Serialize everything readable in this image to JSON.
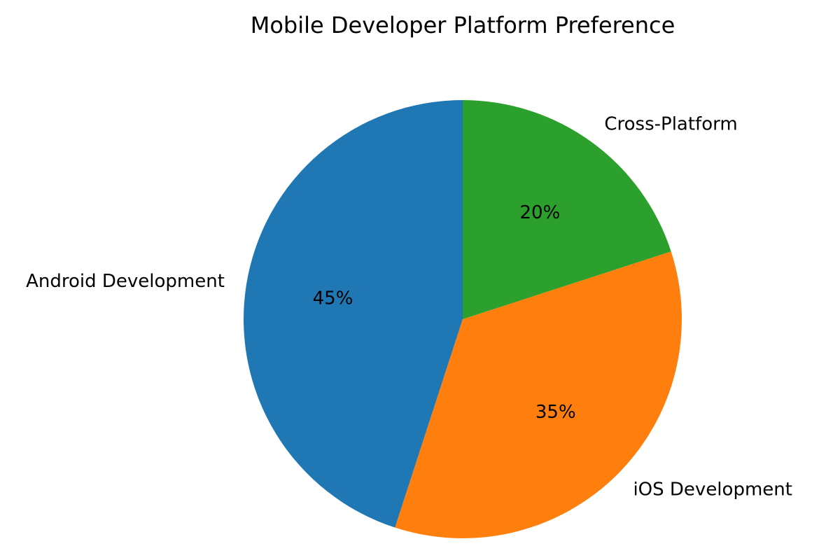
{
  "chart_data": {
    "type": "pie",
    "title": "Mobile Developer Platform Preference",
    "slices": [
      {
        "label": "Android Development",
        "value": 45,
        "pct_label": "45%",
        "color": "#1f77b4"
      },
      {
        "label": "iOS Development",
        "value": 35,
        "pct_label": "35%",
        "color": "#ff7f0e"
      },
      {
        "label": "Cross-Platform",
        "value": 20,
        "pct_label": "20%",
        "color": "#2ca02c"
      }
    ],
    "start_angle": "top",
    "direction": "counterclockwise",
    "legend": "none"
  }
}
